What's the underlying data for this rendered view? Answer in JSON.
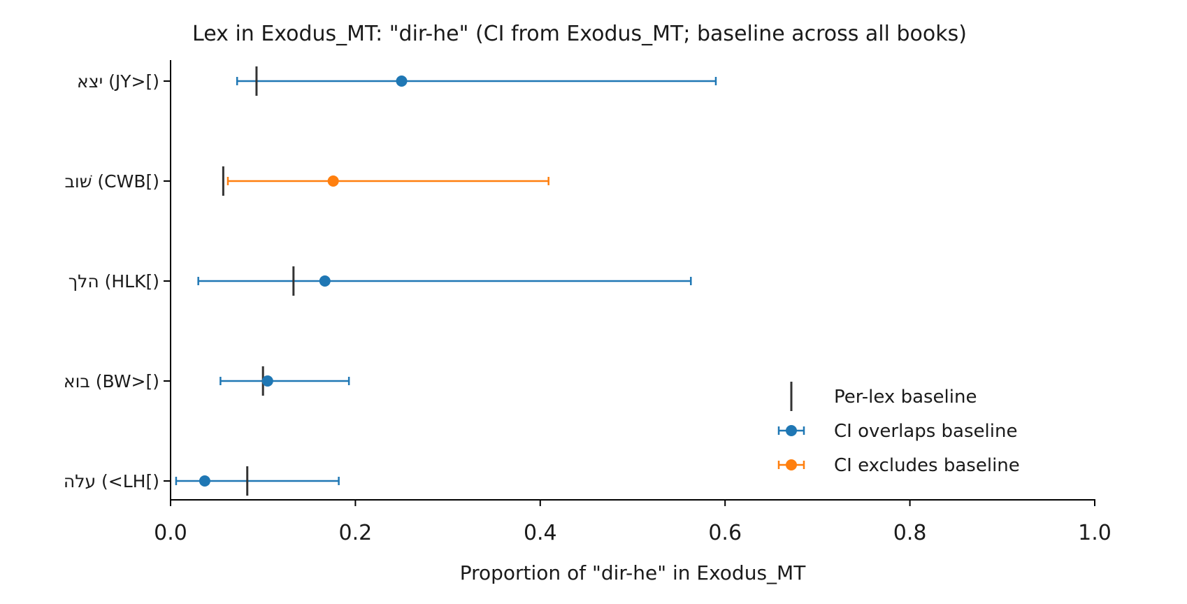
{
  "chart_data": {
    "type": "errorbar",
    "title": "Lex in Exodus_MT: \"dir-he\" (CI from Exodus_MT; baseline across all books)",
    "xlabel": "Proportion of \"dir-he\" in Exodus_MT",
    "ylabel": "",
    "xlim": [
      0.0,
      1.0
    ],
    "xticks": [
      "0.0",
      "0.2",
      "0.4",
      "0.6",
      "0.8",
      "1.0"
    ],
    "grid": false,
    "legend_position": "lower-right",
    "colors": {
      "overlaps": "#1f77b4",
      "excludes": "#ff7f0e",
      "baseline": "#333333"
    },
    "rows": [
      {
        "label": "יצא (JY>[)",
        "estimate": 0.25,
        "ci_low": 0.072,
        "ci_high": 0.59,
        "baseline": 0.093,
        "group": "overlaps"
      },
      {
        "label": "שׁוב (CWB[)",
        "estimate": 0.176,
        "ci_low": 0.062,
        "ci_high": 0.409,
        "baseline": 0.057,
        "group": "excludes"
      },
      {
        "label": "הלך (HLK[)",
        "estimate": 0.167,
        "ci_low": 0.03,
        "ci_high": 0.563,
        "baseline": 0.133,
        "group": "overlaps"
      },
      {
        "label": "בוא (BW>[)",
        "estimate": 0.105,
        "ci_low": 0.054,
        "ci_high": 0.193,
        "baseline": 0.1,
        "group": "overlaps"
      },
      {
        "label": "עלה (<LH[)",
        "estimate": 0.037,
        "ci_low": 0.006,
        "ci_high": 0.182,
        "baseline": 0.083,
        "group": "overlaps"
      }
    ],
    "legend": [
      {
        "label": "Per-lex baseline",
        "kind": "baseline"
      },
      {
        "label": "CI overlaps baseline",
        "kind": "overlaps"
      },
      {
        "label": "CI excludes baseline",
        "kind": "excludes"
      }
    ]
  }
}
